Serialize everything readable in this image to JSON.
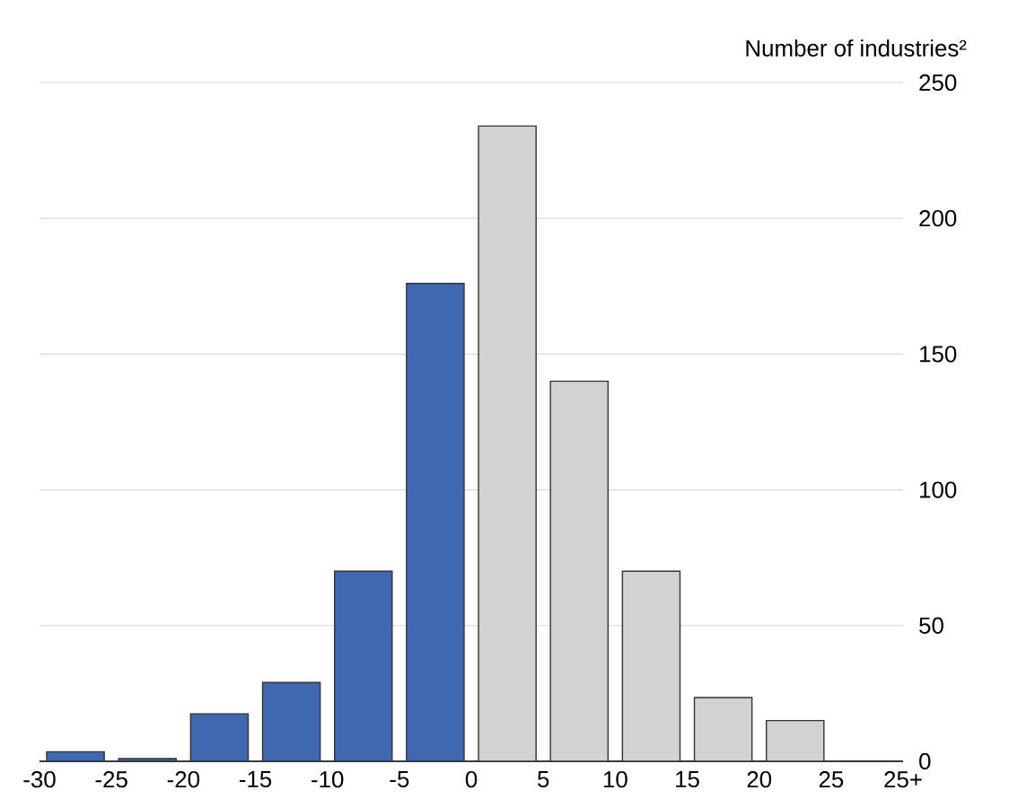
{
  "chart_data": {
    "type": "histogram",
    "ylabel": "Number of industries²",
    "bins": [
      -30,
      -25,
      -20,
      -15,
      -10,
      -5,
      0,
      5,
      10,
      15,
      20,
      25,
      30
    ],
    "values": [
      3.5,
      1,
      17.5,
      29,
      70,
      176,
      234,
      140,
      70,
      23.5,
      15,
      0
    ],
    "colors": [
      "#3f68b1",
      "#3f68b1",
      "#3f68b1",
      "#3f68b1",
      "#3f68b1",
      "#3f68b1",
      "#d1d2d4",
      "#d1d2d4",
      "#d1d2d4",
      "#d1d2d4",
      "#d1d2d4",
      "#d1d2d4"
    ],
    "xlim": [
      -30,
      30
    ],
    "xticks": [
      -30,
      -25,
      -20,
      -15,
      -10,
      -5,
      0,
      5,
      10,
      15,
      20,
      25,
      {
        "value": 30,
        "label": "25+"
      }
    ],
    "ylim": [
      0,
      250
    ],
    "yticks": [
      0,
      50,
      100,
      150,
      200,
      250
    ],
    "grid": "y"
  }
}
